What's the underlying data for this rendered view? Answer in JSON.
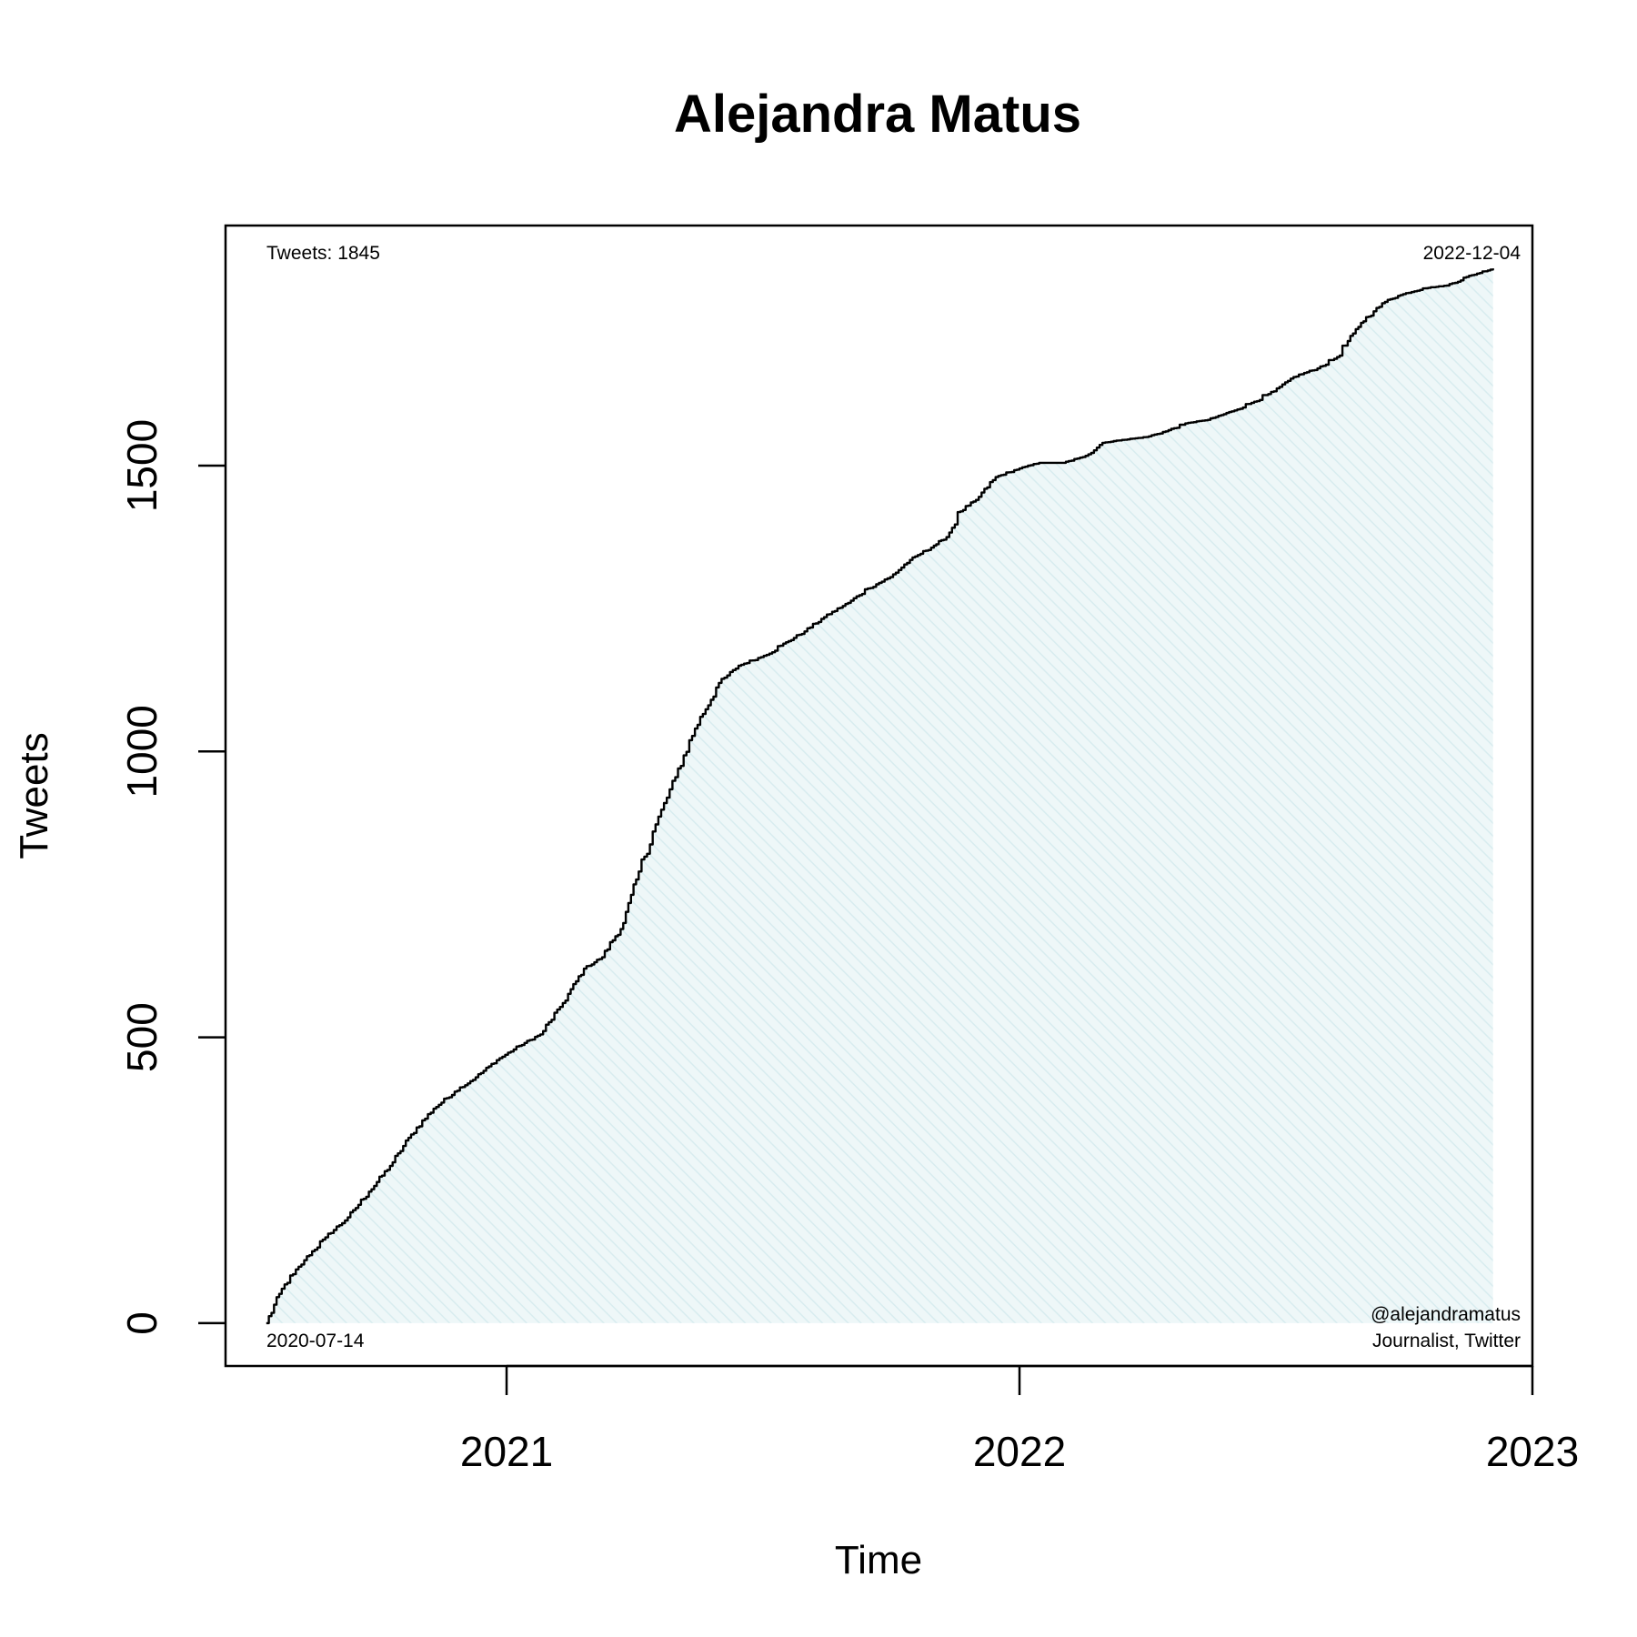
{
  "chart_data": {
    "type": "area",
    "title": "Alejandra Matus",
    "xlabel": "Time",
    "ylabel": "Tweets",
    "x_ticks": [
      "2021",
      "2022",
      "2023"
    ],
    "y_ticks": [
      "0",
      "500",
      "1000",
      "1500"
    ],
    "xlim": [
      "2020-06-15",
      "2023-01-01"
    ],
    "ylim": [
      -75,
      1920
    ],
    "grid": false,
    "fill_color": "#d8ecef",
    "line_color": "#000000",
    "annotations": {
      "top_left": "Tweets: 1845",
      "top_right": "2022-12-04",
      "bottom_left": "2020-07-14",
      "bottom_right_1": "@alejandramatus",
      "bottom_right_2": "Journalist, Twitter"
    },
    "series": [
      {
        "x": [
          "2020-07-14",
          "2020-07-25",
          "2020-08-10",
          "2020-08-25",
          "2020-09-10",
          "2020-09-25",
          "2020-10-10",
          "2020-10-25",
          "2020-11-10",
          "2020-11-25",
          "2020-12-10",
          "2020-12-25",
          "2021-01-10",
          "2021-01-25",
          "2021-02-10",
          "2021-02-25",
          "2021-03-10",
          "2021-03-25",
          "2021-04-05",
          "2021-04-15",
          "2021-05-01",
          "2021-05-15",
          "2021-06-01",
          "2021-06-15",
          "2021-07-01",
          "2021-07-15",
          "2021-08-01",
          "2021-08-15",
          "2021-09-01",
          "2021-09-15",
          "2021-10-01",
          "2021-10-15",
          "2021-11-01",
          "2021-11-10",
          "2021-11-20",
          "2021-12-01",
          "2021-12-15",
          "2022-01-01",
          "2022-01-15",
          "2022-02-01",
          "2022-02-15",
          "2022-03-01",
          "2022-03-15",
          "2022-04-01",
          "2022-04-15",
          "2022-05-01",
          "2022-05-15",
          "2022-06-01",
          "2022-06-15",
          "2022-07-01",
          "2022-07-15",
          "2022-08-01",
          "2022-08-15",
          "2022-09-01",
          "2022-09-10",
          "2022-09-20",
          "2022-10-01",
          "2022-10-15",
          "2022-11-01",
          "2022-11-15",
          "2022-12-04"
        ],
        "values": [
          0,
          60,
          110,
          150,
          185,
          230,
          275,
          330,
          375,
          405,
          430,
          460,
          485,
          505,
          560,
          620,
          640,
          700,
          790,
          860,
          955,
          1040,
          1120,
          1150,
          1165,
          1185,
          1210,
          1235,
          1260,
          1285,
          1305,
          1335,
          1360,
          1375,
          1420,
          1440,
          1480,
          1495,
          1505,
          1505,
          1515,
          1540,
          1545,
          1550,
          1560,
          1575,
          1580,
          1595,
          1610,
          1630,
          1655,
          1670,
          1690,
          1750,
          1770,
          1790,
          1800,
          1810,
          1815,
          1830,
          1845
        ]
      }
    ]
  }
}
